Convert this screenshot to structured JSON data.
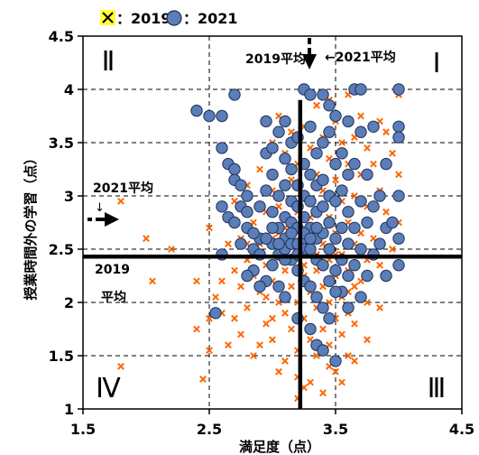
{
  "chart_data": {
    "type": "scatter",
    "xlabel": "満足度（点）",
    "ylabel": "授業時間外の学習（点）",
    "xlim": [
      1.5,
      4.5
    ],
    "ylim": [
      1,
      4.5
    ],
    "x_ticks": [
      "1.5",
      "2.5",
      "3.5",
      "4.5"
    ],
    "y_ticks": [
      "1",
      "1.5",
      "2",
      "2.5",
      "3",
      "3.5",
      "4",
      "4.5"
    ],
    "grid": "dashed",
    "legend_placement": "top-left",
    "legend": {
      "x_marker_label": "：2019、",
      "circle_marker_label": "：2021"
    },
    "quadrants": {
      "q1": "Ⅰ",
      "q2": "Ⅱ",
      "q3": "Ⅲ",
      "q4": "Ⅳ"
    },
    "annotations": {
      "avg2019_x": "2019平均",
      "avg2021_x": "←2021平均",
      "avg2021_y": "2021平均",
      "avg2021_y_arrow": "↓",
      "avg2019_y_line1": "2019",
      "avg2019_y_line2": "平均"
    },
    "averages": {
      "2019": {
        "x": 3.22,
        "y": 2.43
      },
      "2021": {
        "x": 3.25,
        "y": 2.75
      }
    },
    "colors": {
      "y2019": "#FF6600",
      "y2021_fill": "#5B7DB8",
      "y2021_edge": "#1F2F55",
      "legend_box": "#FFFF33"
    },
    "series": [
      {
        "name": "2019",
        "marker": "x",
        "points": [
          [
            1.8,
            2.95
          ],
          [
            1.8,
            1.4
          ],
          [
            2.0,
            2.6
          ],
          [
            2.05,
            2.2
          ],
          [
            2.2,
            2.5
          ],
          [
            2.4,
            2.2
          ],
          [
            2.4,
            1.75
          ],
          [
            2.5,
            1.55
          ],
          [
            2.5,
            1.85
          ],
          [
            2.45,
            1.28
          ],
          [
            2.55,
            2.05
          ],
          [
            2.6,
            2.45
          ],
          [
            2.6,
            1.9
          ],
          [
            2.65,
            2.55
          ],
          [
            2.65,
            1.6
          ],
          [
            2.7,
            2.95
          ],
          [
            2.7,
            2.3
          ],
          [
            2.7,
            1.85
          ],
          [
            2.75,
            2.6
          ],
          [
            2.75,
            2.15
          ],
          [
            2.75,
            1.7
          ],
          [
            2.8,
            3.1
          ],
          [
            2.8,
            2.4
          ],
          [
            2.8,
            1.95
          ],
          [
            2.85,
            2.75
          ],
          [
            2.85,
            2.25
          ],
          [
            2.85,
            1.5
          ],
          [
            2.9,
            3.25
          ],
          [
            2.9,
            2.55
          ],
          [
            2.9,
            2.1
          ],
          [
            2.95,
            2.85
          ],
          [
            2.95,
            2.35
          ],
          [
            2.95,
            1.8
          ],
          [
            3.0,
            3.5
          ],
          [
            3.0,
            3.05
          ],
          [
            3.0,
            2.6
          ],
          [
            3.0,
            2.2
          ],
          [
            3.0,
            1.65
          ],
          [
            3.05,
            3.75
          ],
          [
            3.05,
            2.9
          ],
          [
            3.05,
            2.45
          ],
          [
            3.05,
            2.0
          ],
          [
            3.1,
            3.4
          ],
          [
            3.1,
            2.7
          ],
          [
            3.1,
            2.3
          ],
          [
            3.1,
            1.9
          ],
          [
            3.1,
            1.45
          ],
          [
            3.15,
            3.6
          ],
          [
            3.15,
            3.15
          ],
          [
            3.15,
            2.55
          ],
          [
            3.15,
            2.15
          ],
          [
            3.15,
            1.75
          ],
          [
            3.2,
            3.3
          ],
          [
            3.2,
            2.85
          ],
          [
            3.2,
            2.4
          ],
          [
            3.2,
            2.0
          ],
          [
            3.2,
            1.55
          ],
          [
            3.2,
            1.3
          ],
          [
            3.25,
            3.65
          ],
          [
            3.25,
            3.0
          ],
          [
            3.25,
            2.6
          ],
          [
            3.25,
            2.25
          ],
          [
            3.25,
            1.85
          ],
          [
            3.25,
            1.2
          ],
          [
            3.3,
            3.45
          ],
          [
            3.3,
            2.95
          ],
          [
            3.3,
            2.5
          ],
          [
            3.3,
            2.1
          ],
          [
            3.3,
            1.65
          ],
          [
            3.35,
            3.85
          ],
          [
            3.35,
            3.2
          ],
          [
            3.35,
            2.7
          ],
          [
            3.35,
            2.3
          ],
          [
            3.35,
            1.95
          ],
          [
            3.35,
            1.5
          ],
          [
            3.4,
            3.55
          ],
          [
            3.4,
            3.05
          ],
          [
            3.4,
            2.55
          ],
          [
            3.4,
            2.15
          ],
          [
            3.4,
            1.75
          ],
          [
            3.45,
            3.9
          ],
          [
            3.45,
            3.35
          ],
          [
            3.45,
            2.8
          ],
          [
            3.45,
            2.4
          ],
          [
            3.45,
            2.0
          ],
          [
            3.45,
            1.6
          ],
          [
            3.5,
            3.7
          ],
          [
            3.5,
            3.15
          ],
          [
            3.5,
            2.65
          ],
          [
            3.5,
            2.25
          ],
          [
            3.5,
            1.85
          ],
          [
            3.5,
            1.35
          ],
          [
            3.55,
            3.5
          ],
          [
            3.55,
            2.95
          ],
          [
            3.55,
            2.45
          ],
          [
            3.55,
            2.05
          ],
          [
            3.55,
            1.7
          ],
          [
            3.6,
            3.95
          ],
          [
            3.6,
            3.3
          ],
          [
            3.6,
            2.75
          ],
          [
            3.6,
            2.3
          ],
          [
            3.6,
            1.9
          ],
          [
            3.6,
            1.5
          ],
          [
            3.65,
            3.55
          ],
          [
            3.65,
            3.0
          ],
          [
            3.65,
            2.55
          ],
          [
            3.65,
            2.15
          ],
          [
            3.65,
            1.8
          ],
          [
            3.7,
            3.75
          ],
          [
            3.7,
            3.2
          ],
          [
            3.7,
            2.65
          ],
          [
            3.7,
            2.2
          ],
          [
            3.75,
            3.45
          ],
          [
            3.75,
            2.9
          ],
          [
            3.75,
            2.4
          ],
          [
            3.75,
            2.0
          ],
          [
            3.8,
            3.3
          ],
          [
            3.8,
            2.6
          ],
          [
            3.85,
            3.7
          ],
          [
            3.85,
            3.05
          ],
          [
            3.85,
            2.35
          ],
          [
            3.9,
            3.6
          ],
          [
            3.9,
            2.85
          ],
          [
            3.95,
            3.4
          ],
          [
            3.95,
            2.5
          ],
          [
            4.0,
            3.95
          ],
          [
            4.0,
            3.2
          ],
          [
            4.0,
            2.75
          ],
          [
            2.9,
            1.6
          ],
          [
            3.05,
            1.35
          ],
          [
            3.3,
            1.25
          ],
          [
            3.4,
            1.15
          ],
          [
            3.55,
            1.25
          ],
          [
            3.2,
            1.1
          ],
          [
            3.15,
            2.7
          ],
          [
            3.35,
            2.45
          ],
          [
            3.45,
            2.2
          ],
          [
            3.25,
            2.35
          ],
          [
            3.05,
            2.65
          ],
          [
            2.95,
            2.05
          ],
          [
            3.1,
            2.5
          ],
          [
            3.3,
            2.8
          ],
          [
            3.5,
            2.45
          ],
          [
            3.6,
            2.1
          ],
          [
            3.75,
            1.65
          ],
          [
            3.65,
            1.45
          ],
          [
            3.85,
            1.95
          ],
          [
            2.6,
            2.2
          ],
          [
            2.8,
            2.55
          ],
          [
            2.5,
            2.7
          ],
          [
            3.0,
            1.85
          ],
          [
            3.45,
            1.4
          ]
        ]
      },
      {
        "name": "2021",
        "marker": "circle",
        "points": [
          [
            2.4,
            3.8
          ],
          [
            2.5,
            3.75
          ],
          [
            2.6,
            3.75
          ],
          [
            2.6,
            3.45
          ],
          [
            2.65,
            3.3
          ],
          [
            2.7,
            3.95
          ],
          [
            2.7,
            3.25
          ],
          [
            2.7,
            3.15
          ],
          [
            2.75,
            3.1
          ],
          [
            2.75,
            2.9
          ],
          [
            2.6,
            2.9
          ],
          [
            2.65,
            2.8
          ],
          [
            2.7,
            2.75
          ],
          [
            2.6,
            2.45
          ],
          [
            2.55,
            1.9
          ],
          [
            2.8,
            3.0
          ],
          [
            2.8,
            2.7
          ],
          [
            2.85,
            2.5
          ],
          [
            2.85,
            2.3
          ],
          [
            2.9,
            2.9
          ],
          [
            2.9,
            2.6
          ],
          [
            2.95,
            3.7
          ],
          [
            2.95,
            3.4
          ],
          [
            2.95,
            3.05
          ],
          [
            3.0,
            3.45
          ],
          [
            3.0,
            3.2
          ],
          [
            3.0,
            2.85
          ],
          [
            3.0,
            2.55
          ],
          [
            3.0,
            2.35
          ],
          [
            3.05,
            3.6
          ],
          [
            3.05,
            3.0
          ],
          [
            3.05,
            2.7
          ],
          [
            3.05,
            2.45
          ],
          [
            3.1,
            3.35
          ],
          [
            3.1,
            3.1
          ],
          [
            3.1,
            2.8
          ],
          [
            3.1,
            2.6
          ],
          [
            3.1,
            2.5
          ],
          [
            3.15,
            3.5
          ],
          [
            3.15,
            3.25
          ],
          [
            3.15,
            2.95
          ],
          [
            3.15,
            2.75
          ],
          [
            3.15,
            2.55
          ],
          [
            3.15,
            2.4
          ],
          [
            3.2,
            3.1
          ],
          [
            3.2,
            2.9
          ],
          [
            3.2,
            2.7
          ],
          [
            3.2,
            2.55
          ],
          [
            3.2,
            2.3
          ],
          [
            3.25,
            3.3
          ],
          [
            3.25,
            3.0
          ],
          [
            3.25,
            2.8
          ],
          [
            3.25,
            2.6
          ],
          [
            3.25,
            2.5
          ],
          [
            3.25,
            2.2
          ],
          [
            3.3,
            3.65
          ],
          [
            3.3,
            3.2
          ],
          [
            3.3,
            2.95
          ],
          [
            3.3,
            2.7
          ],
          [
            3.3,
            2.5
          ],
          [
            3.3,
            2.15
          ],
          [
            3.35,
            3.4
          ],
          [
            3.35,
            3.1
          ],
          [
            3.35,
            2.85
          ],
          [
            3.35,
            2.6
          ],
          [
            3.35,
            2.4
          ],
          [
            3.35,
            2.05
          ],
          [
            3.4,
            3.95
          ],
          [
            3.4,
            3.5
          ],
          [
            3.4,
            3.15
          ],
          [
            3.4,
            2.9
          ],
          [
            3.4,
            2.65
          ],
          [
            3.4,
            2.35
          ],
          [
            3.4,
            1.95
          ],
          [
            3.45,
            3.85
          ],
          [
            3.45,
            3.6
          ],
          [
            3.45,
            3.0
          ],
          [
            3.45,
            2.75
          ],
          [
            3.45,
            2.5
          ],
          [
            3.45,
            1.85
          ],
          [
            3.5,
            3.75
          ],
          [
            3.5,
            3.3
          ],
          [
            3.5,
            2.95
          ],
          [
            3.5,
            2.6
          ],
          [
            3.5,
            2.3
          ],
          [
            3.5,
            1.45
          ],
          [
            3.55,
            3.4
          ],
          [
            3.55,
            3.05
          ],
          [
            3.55,
            2.7
          ],
          [
            3.55,
            2.4
          ],
          [
            3.55,
            2.1
          ],
          [
            3.6,
            3.7
          ],
          [
            3.6,
            3.2
          ],
          [
            3.6,
            2.85
          ],
          [
            3.6,
            2.55
          ],
          [
            3.6,
            2.25
          ],
          [
            3.6,
            1.95
          ],
          [
            3.65,
            4.0
          ],
          [
            3.65,
            3.3
          ],
          [
            3.65,
            2.7
          ],
          [
            3.65,
            2.35
          ],
          [
            3.7,
            4.0
          ],
          [
            3.7,
            3.6
          ],
          [
            3.7,
            2.95
          ],
          [
            3.7,
            2.5
          ],
          [
            3.7,
            2.05
          ],
          [
            3.75,
            3.2
          ],
          [
            3.75,
            2.75
          ],
          [
            3.75,
            2.25
          ],
          [
            3.8,
            3.65
          ],
          [
            3.8,
            2.9
          ],
          [
            3.8,
            2.45
          ],
          [
            3.85,
            3.0
          ],
          [
            3.85,
            2.55
          ],
          [
            3.9,
            3.3
          ],
          [
            3.9,
            2.7
          ],
          [
            3.9,
            2.25
          ],
          [
            4.0,
            4.0
          ],
          [
            4.0,
            3.65
          ],
          [
            4.0,
            3.0
          ],
          [
            4.0,
            2.6
          ],
          [
            4.0,
            2.35
          ],
          [
            4.0,
            3.55
          ],
          [
            3.95,
            2.75
          ],
          [
            3.25,
            4.0
          ],
          [
            3.3,
            3.95
          ],
          [
            3.2,
            3.55
          ],
          [
            3.1,
            3.7
          ],
          [
            2.95,
            2.2
          ],
          [
            2.9,
            2.15
          ],
          [
            2.8,
            2.25
          ],
          [
            3.05,
            2.15
          ],
          [
            3.1,
            2.05
          ],
          [
            3.2,
            1.85
          ],
          [
            3.3,
            1.75
          ],
          [
            3.35,
            1.6
          ],
          [
            3.4,
            1.55
          ],
          [
            3.25,
            2.65
          ],
          [
            3.15,
            2.65
          ],
          [
            3.35,
            2.7
          ],
          [
            3.3,
            2.6
          ],
          [
            3.2,
            2.45
          ],
          [
            3.1,
            2.4
          ],
          [
            3.05,
            2.55
          ],
          [
            3.0,
            2.7
          ],
          [
            2.95,
            2.6
          ],
          [
            2.9,
            2.45
          ],
          [
            2.85,
            2.65
          ],
          [
            2.8,
            2.85
          ],
          [
            2.75,
            2.55
          ],
          [
            3.45,
            2.2
          ],
          [
            3.5,
            2.1
          ]
        ]
      }
    ]
  }
}
